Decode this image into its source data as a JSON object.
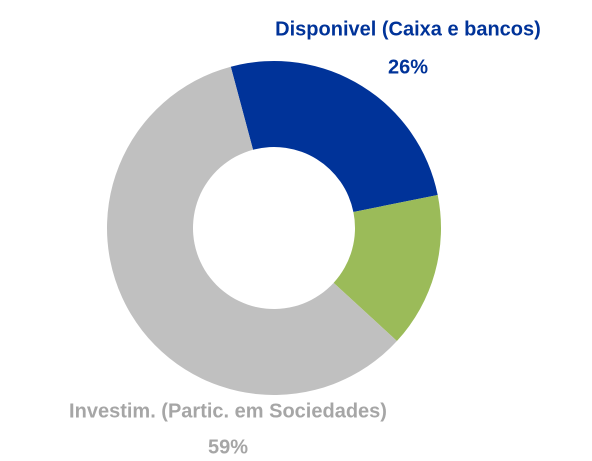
{
  "chart_data": {
    "type": "donut",
    "categories": [
      "Disponivel (Caixa e bancos)",
      null,
      "Investim. (Partic. em Sociedades)"
    ],
    "values": [
      26,
      15,
      59
    ],
    "value_labels": [
      "26%",
      null,
      "59%"
    ],
    "colors": [
      "#003399",
      "#9bbb59",
      "#c0c0c0"
    ]
  }
}
